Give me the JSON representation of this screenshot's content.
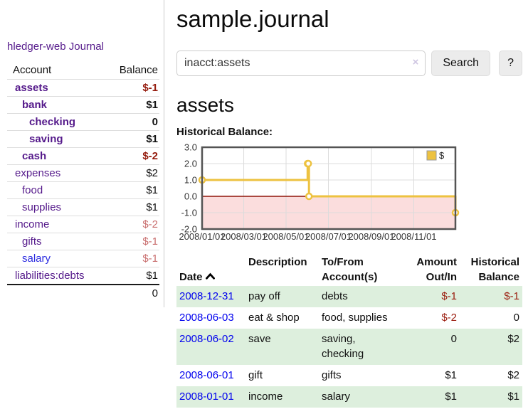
{
  "sidebar": {
    "app_title": "hledger-web",
    "journal_link": "Journal",
    "columns": {
      "account": "Account",
      "balance": "Balance"
    },
    "accounts": [
      {
        "name": "assets",
        "depth": 1,
        "bold": true,
        "balance": "$-1",
        "balance_style": "neg-strong",
        "link_variant": "visited"
      },
      {
        "name": "bank",
        "depth": 2,
        "bold": true,
        "balance": "$1",
        "balance_style": "",
        "link_variant": "visited"
      },
      {
        "name": "checking",
        "depth": 3,
        "bold": true,
        "balance": "0",
        "balance_style": "",
        "link_variant": "visited"
      },
      {
        "name": "saving",
        "depth": 3,
        "bold": true,
        "balance": "$1",
        "balance_style": "",
        "link_variant": "visited"
      },
      {
        "name": "cash",
        "depth": 2,
        "bold": true,
        "balance": "$-2",
        "balance_style": "neg-strong",
        "link_variant": "visited"
      },
      {
        "name": "expenses",
        "depth": 1,
        "bold": false,
        "balance": "$2",
        "balance_style": "",
        "link_variant": "visited"
      },
      {
        "name": "food",
        "depth": 2,
        "bold": false,
        "balance": "$1",
        "balance_style": "",
        "link_variant": "visited"
      },
      {
        "name": "supplies",
        "depth": 2,
        "bold": false,
        "balance": "$1",
        "balance_style": "",
        "link_variant": "visited"
      },
      {
        "name": "income",
        "depth": 1,
        "bold": false,
        "balance": "$-2",
        "balance_style": "neg-soft",
        "link_variant": "visited"
      },
      {
        "name": "gifts",
        "depth": 2,
        "bold": false,
        "balance": "$-1",
        "balance_style": "neg-soft",
        "link_variant": "visited"
      },
      {
        "name": "salary",
        "depth": 2,
        "bold": false,
        "balance": "$-1",
        "balance_style": "neg-soft",
        "link_variant": "unvisited"
      },
      {
        "name": "liabilities:debts",
        "depth": 1,
        "bold": false,
        "balance": "$1",
        "balance_style": "",
        "link_variant": "visited"
      }
    ],
    "total": "0"
  },
  "main": {
    "title": "sample.journal",
    "account_heading": "assets",
    "chart_label": "Historical Balance:"
  },
  "search": {
    "value": "inacct:assets",
    "button": "Search",
    "help_button": "?",
    "clear_icon": "×"
  },
  "chart_data": {
    "type": "line",
    "step": true,
    "title": "Historical Balance",
    "legend_position": "top-right",
    "series": [
      {
        "name": "$",
        "points": [
          [
            "2008-01-01",
            1
          ],
          [
            "2008-06-01",
            2
          ],
          [
            "2008-06-02",
            2
          ],
          [
            "2008-06-03",
            0
          ],
          [
            "2008-12-31",
            -1
          ]
        ]
      }
    ],
    "xlim": [
      "2008-01-01",
      "2008-12-31"
    ],
    "ylim": [
      -2,
      3
    ],
    "yticks": [
      {
        "label": "3.0",
        "value": 3
      },
      {
        "label": "2.0",
        "value": 2
      },
      {
        "label": "1.0",
        "value": 1
      },
      {
        "label": "0.0",
        "value": 0
      },
      {
        "label": "-1.0",
        "value": -1
      },
      {
        "label": "-2.0",
        "value": -2
      }
    ],
    "xticks": [
      {
        "label": "2008/01/01",
        "date": "2008-01-01"
      },
      {
        "label": "2008/03/01",
        "date": "2008-03-01"
      },
      {
        "label": "2008/05/01",
        "date": "2008-05-01"
      },
      {
        "label": "2008/07/01",
        "date": "2008-07-01"
      },
      {
        "label": "2008/09/01",
        "date": "2008-09-01"
      },
      {
        "label": "2008/11/01",
        "date": "2008-11-01"
      }
    ],
    "grid": true,
    "colors": {
      "line": "#edc240",
      "marker_fill": "#ffffff",
      "below_zero_fill": "#fbdddd",
      "zero_line": "#8f1408",
      "grid": "#dcdcdc",
      "border": "#545454",
      "tick_text": "#333333"
    }
  },
  "register": {
    "headers": [
      {
        "label": "Date"
      },
      {
        "label": "Description"
      },
      {
        "label": "To/From\nAccount(s)"
      },
      {
        "label": "Amount\nOut/In"
      },
      {
        "label": "Historical\nBalance"
      }
    ],
    "rows": [
      {
        "date": "2008-12-31",
        "description": "pay off",
        "accounts": "debts",
        "amount": "$-1",
        "amount_neg": true,
        "balance": "$-1",
        "balance_neg": true
      },
      {
        "date": "2008-06-03",
        "description": "eat & shop",
        "accounts": "food, supplies",
        "amount": "$-2",
        "amount_neg": true,
        "balance": "0",
        "balance_neg": false
      },
      {
        "date": "2008-06-02",
        "description": "save",
        "accounts": "saving,\nchecking",
        "amount": "0",
        "amount_neg": false,
        "balance": "$2",
        "balance_neg": false
      },
      {
        "date": "2008-06-01",
        "description": "gift",
        "accounts": "gifts",
        "amount": "$1",
        "amount_neg": false,
        "balance": "$2",
        "balance_neg": false
      },
      {
        "date": "2008-01-01",
        "description": "income",
        "accounts": "salary",
        "amount": "$1",
        "amount_neg": false,
        "balance": "$1",
        "balance_neg": false
      }
    ]
  },
  "colors": {
    "link_visited": "#551a8b",
    "link_unvisited": "#2a2ae0",
    "date_link": "#0000ee",
    "negative_strong": "#941a0c",
    "negative_soft": "#c96f6f",
    "row_stripe": "#ddefdd"
  }
}
